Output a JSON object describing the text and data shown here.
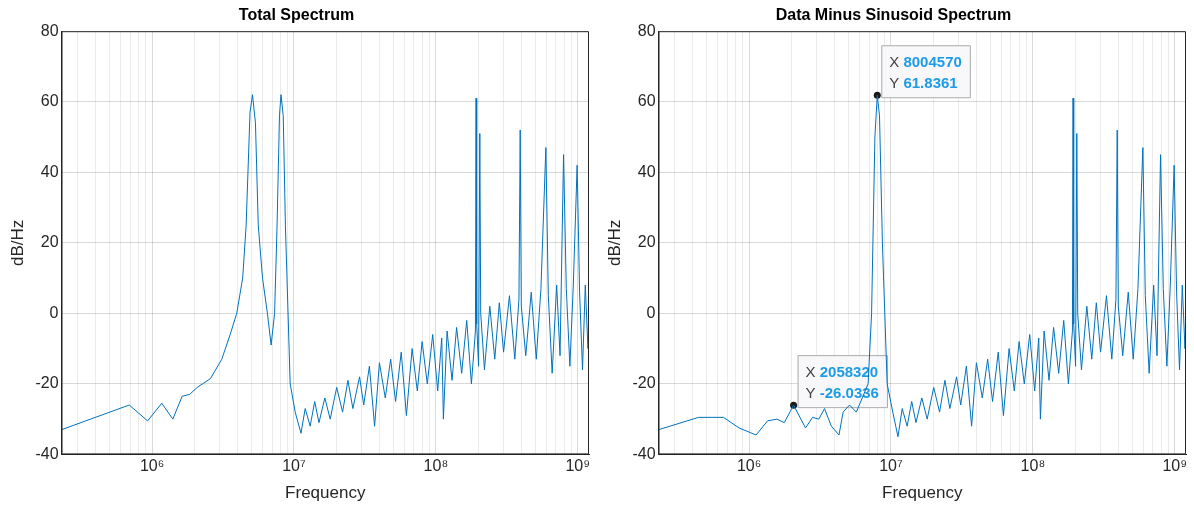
{
  "chart_data": [
    {
      "type": "line",
      "title": "Total Spectrum",
      "xlabel": "Frequency",
      "ylabel": "dB/Hz",
      "log": "x",
      "grid": true,
      "color": "#0072bd",
      "x": [
        230000,
        690000,
        930000,
        1170000,
        1400000,
        1630000,
        1840000,
        2080000,
        2580000,
        3100000,
        3550000,
        3950000,
        4350000,
        4600000,
        4900000,
        5100000,
        5350000,
        5600000,
        6000000,
        6500000,
        6900000,
        7300000,
        7600000,
        7900000,
        8100000,
        8400000,
        8700000,
        9400000,
        10200000,
        11200000,
        12000000,
        13000000,
        14000000,
        15000000,
        16500000,
        18000000,
        20000000,
        22000000,
        24000000,
        26000000,
        29000000,
        31000000,
        34000000,
        37000000,
        40000000,
        44000000,
        48000000,
        52000000,
        57000000,
        62000000,
        68000000,
        74000000,
        80000000,
        87000000,
        95000000,
        103000000,
        110000000,
        113000000,
        120000000,
        130000000,
        140000000,
        152000000,
        165000000,
        178000000,
        190000000,
        192000000,
        194000000,
        200000000,
        204000000,
        207000000,
        220000000,
        240000000,
        260000000,
        280000000,
        300000000,
        330000000,
        360000000,
        385000000,
        393000000,
        400000000,
        430000000,
        470000000,
        510000000,
        550000000,
        596000000,
        620000000,
        660000000,
        710000000,
        750000000,
        794000000,
        830000000,
        880000000,
        930000000,
        990000000,
        1030000000,
        1080000000,
        1130000000,
        1180000000,
        1200000000
      ],
      "values": [
        -33,
        -26,
        -30.5,
        -25.5,
        -30,
        -23.5,
        -23,
        -21,
        -18.5,
        -13,
        -6,
        0,
        10,
        25,
        57,
        62,
        54,
        25,
        10,
        0,
        -9,
        0,
        25,
        56,
        62,
        56,
        25,
        -20,
        -28,
        -34,
        -27,
        -32,
        -25,
        -31,
        -24,
        -30,
        -21,
        -28,
        -19,
        -27,
        -18,
        -26,
        -15,
        -32,
        -14,
        -24,
        -13,
        -25,
        -11,
        -29,
        -10,
        -22,
        -8,
        -20,
        -6,
        -22,
        -7,
        -30,
        -5,
        -19,
        -4,
        -17,
        -2,
        -20,
        -5,
        61,
        -3,
        -15,
        51,
        0,
        -16,
        2,
        -13,
        3,
        -11,
        5,
        -13,
        4,
        52,
        2,
        -12,
        6,
        -13,
        7,
        47,
        5,
        -17,
        8,
        -12,
        45,
        7,
        -15,
        8,
        42,
        6,
        -16,
        8,
        -10,
        2
      ],
      "xlim": [
        230000,
        1200000000
      ],
      "xticks": [
        {
          "value": 300000,
          "label": null
        },
        {
          "value": 400000,
          "label": null
        },
        {
          "value": 500000,
          "label": null
        },
        {
          "value": 600000,
          "label": null
        },
        {
          "value": 700000,
          "label": null
        },
        {
          "value": 800000,
          "label": null
        },
        {
          "value": 900000,
          "label": null
        },
        {
          "value": 1000000,
          "label": "10⁶"
        },
        {
          "value": 2000000,
          "label": null
        },
        {
          "value": 3000000,
          "label": null
        },
        {
          "value": 4000000,
          "label": null
        },
        {
          "value": 5000000,
          "label": null
        },
        {
          "value": 6000000,
          "label": null
        },
        {
          "value": 7000000,
          "label": null
        },
        {
          "value": 8000000,
          "label": null
        },
        {
          "value": 9000000,
          "label": null
        },
        {
          "value": 10000000,
          "label": "10⁷"
        },
        {
          "value": 20000000,
          "label": null
        },
        {
          "value": 30000000,
          "label": null
        },
        {
          "value": 40000000,
          "label": null
        },
        {
          "value": 50000000,
          "label": null
        },
        {
          "value": 60000000,
          "label": null
        },
        {
          "value": 70000000,
          "label": null
        },
        {
          "value": 80000000,
          "label": null
        },
        {
          "value": 90000000,
          "label": null
        },
        {
          "value": 100000000,
          "label": "10⁸"
        },
        {
          "value": 200000000,
          "label": null
        },
        {
          "value": 300000000,
          "label": null
        },
        {
          "value": 400000000,
          "label": null
        },
        {
          "value": 500000000,
          "label": null
        },
        {
          "value": 600000000,
          "label": null
        },
        {
          "value": 700000000,
          "label": null
        },
        {
          "value": 800000000,
          "label": null
        },
        {
          "value": 900000000,
          "label": null
        },
        {
          "value": 1000000000,
          "label": "10⁹"
        }
      ],
      "ylim": [
        -40,
        80
      ],
      "yticks": [
        -40,
        -20,
        0,
        20,
        40,
        60,
        80
      ]
    },
    {
      "type": "line",
      "title": "Data Minus Sinusoid Spectrum",
      "xlabel": "Frequency",
      "ylabel": "dB/Hz",
      "log": "x",
      "grid": true,
      "color": "#0072bd",
      "x": [
        230000,
        440000,
        660000,
        850000,
        1120000,
        1350000,
        1570000,
        1770000,
        2058320,
        2500000,
        2800000,
        3100000,
        3400000,
        3800000,
        4300000,
        4600000,
        5100000,
        5700000,
        6900000,
        7300000,
        7700000,
        8004570,
        8300000,
        8700000,
        9400000,
        10300000,
        11200000,
        12000000,
        13000000,
        14000000,
        15000000,
        16500000,
        18000000,
        20000000,
        22000000,
        24000000,
        26000000,
        29000000,
        31000000,
        34000000,
        37000000,
        40000000,
        44000000,
        48000000,
        52000000,
        57000000,
        62000000,
        68000000,
        74000000,
        80000000,
        87000000,
        95000000,
        103000000,
        110000000,
        113000000,
        120000000,
        130000000,
        140000000,
        152000000,
        165000000,
        178000000,
        190000000,
        192000000,
        194000000,
        200000000,
        204000000,
        207000000,
        220000000,
        240000000,
        260000000,
        280000000,
        300000000,
        330000000,
        360000000,
        385000000,
        393000000,
        400000000,
        430000000,
        470000000,
        510000000,
        550000000,
        596000000,
        620000000,
        660000000,
        710000000,
        750000000,
        794000000,
        830000000,
        880000000,
        930000000,
        990000000,
        1030000000,
        1080000000,
        1130000000,
        1180000000,
        1200000000
      ],
      "values": [
        -33,
        -29.5,
        -29.5,
        -32.5,
        -34.5,
        -30.5,
        -30,
        -31,
        -26.0336,
        -32.5,
        -29.5,
        -30,
        -27,
        -32,
        -34.5,
        -28,
        -26,
        -28,
        -20,
        0,
        50,
        61.8361,
        56,
        20,
        -20,
        -28,
        -35,
        -27,
        -32,
        -25,
        -31,
        -24,
        -30,
        -21,
        -28,
        -19,
        -27,
        -18,
        -26,
        -15,
        -32,
        -14,
        -24,
        -13,
        -25,
        -11,
        -29,
        -10,
        -22,
        -8,
        -20,
        -6,
        -22,
        -7,
        -30,
        -5,
        -19,
        -4,
        -17,
        -2,
        -20,
        -5,
        61,
        -3,
        -15,
        51,
        0,
        -16,
        2,
        -13,
        3,
        -11,
        5,
        -13,
        4,
        52,
        2,
        -12,
        6,
        -13,
        7,
        47,
        5,
        -17,
        8,
        -12,
        45,
        7,
        -15,
        8,
        42,
        6,
        -16,
        8,
        -10,
        2
      ],
      "xlim": [
        230000,
        1200000000
      ],
      "xticks": [
        {
          "value": 300000,
          "label": null
        },
        {
          "value": 400000,
          "label": null
        },
        {
          "value": 500000,
          "label": null
        },
        {
          "value": 600000,
          "label": null
        },
        {
          "value": 700000,
          "label": null
        },
        {
          "value": 800000,
          "label": null
        },
        {
          "value": 900000,
          "label": null
        },
        {
          "value": 1000000,
          "label": "10⁶"
        },
        {
          "value": 2000000,
          "label": null
        },
        {
          "value": 3000000,
          "label": null
        },
        {
          "value": 4000000,
          "label": null
        },
        {
          "value": 5000000,
          "label": null
        },
        {
          "value": 6000000,
          "label": null
        },
        {
          "value": 7000000,
          "label": null
        },
        {
          "value": 8000000,
          "label": null
        },
        {
          "value": 9000000,
          "label": null
        },
        {
          "value": 10000000,
          "label": "10⁷"
        },
        {
          "value": 20000000,
          "label": null
        },
        {
          "value": 30000000,
          "label": null
        },
        {
          "value": 40000000,
          "label": null
        },
        {
          "value": 50000000,
          "label": null
        },
        {
          "value": 60000000,
          "label": null
        },
        {
          "value": 70000000,
          "label": null
        },
        {
          "value": 80000000,
          "label": null
        },
        {
          "value": 90000000,
          "label": null
        },
        {
          "value": 100000000,
          "label": "10⁸"
        },
        {
          "value": 200000000,
          "label": null
        },
        {
          "value": 300000000,
          "label": null
        },
        {
          "value": 400000000,
          "label": null
        },
        {
          "value": 500000000,
          "label": null
        },
        {
          "value": 600000000,
          "label": null
        },
        {
          "value": 700000000,
          "label": null
        },
        {
          "value": 800000000,
          "label": null
        },
        {
          "value": 900000000,
          "label": null
        },
        {
          "value": 1000000000,
          "label": "10⁹"
        }
      ],
      "ylim": [
        -40,
        80
      ],
      "yticks": [
        -40,
        -20,
        0,
        20,
        40,
        60,
        80
      ],
      "annotations": [
        {
          "text": "X 8004570\nY 61.8361",
          "x": 8004570,
          "y": 61.8361
        },
        {
          "text": "X 2058320\nY -26.0336",
          "x": 2058320,
          "y": -26.0336
        }
      ]
    }
  ]
}
